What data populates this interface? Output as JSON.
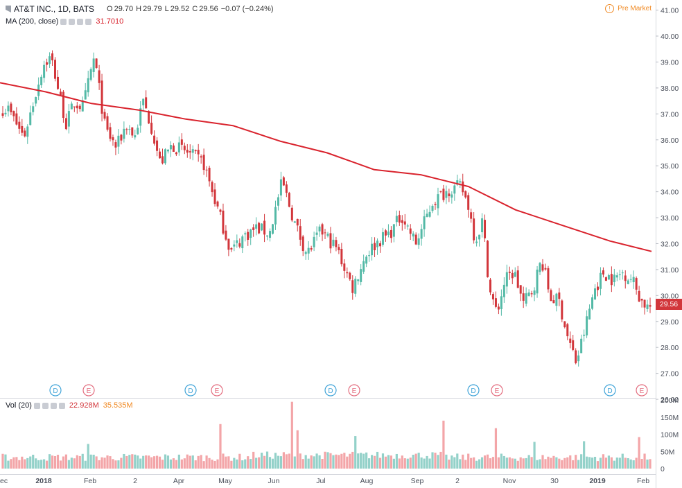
{
  "header": {
    "symbol_text": "AT&T INC., 1D, BATS",
    "open_label": "O",
    "open": "29.70",
    "high_label": "H",
    "high": "29.79",
    "low_label": "L",
    "low": "29.52",
    "close_label": "C",
    "close": "29.56",
    "change": "−0.07 (−0.24%)",
    "pre_market": "Pre Market",
    "pre_market_icon": "clock-icon"
  },
  "ma_legend": {
    "label": "MA (200, close)",
    "value": "31.7010"
  },
  "vol_legend": {
    "label": "Vol (20)",
    "value1": "22.928M",
    "value2": "35.535M"
  },
  "last_price_label": "29.56",
  "colors": {
    "up": "#53b9a6",
    "down": "#d2363b",
    "ma": "#d9232d",
    "vol_up": "#93d1c9",
    "vol_down": "#f3a5a8",
    "dividend": "#3ea3d8",
    "earnings": "#e36c7e"
  },
  "chart_data": {
    "type": "candlestick",
    "price_axis": {
      "ticks": [
        "41.00",
        "40.00",
        "39.00",
        "38.00",
        "37.00",
        "36.00",
        "35.00",
        "34.00",
        "33.00",
        "32.00",
        "31.00",
        "30.00",
        "29.00",
        "28.00",
        "27.00",
        "26.00"
      ],
      "range": [
        26,
        41
      ]
    },
    "volume_axis": {
      "ticks": [
        "200M",
        "150M",
        "100M",
        "50M",
        "0"
      ],
      "range": [
        0,
        200
      ]
    },
    "x_labels": [
      "ec",
      "2018",
      "Feb",
      "2",
      "Apr",
      "May",
      "Jun",
      "Jul",
      "Aug",
      "Sep",
      "2",
      "Nov",
      "30",
      "2019",
      "Feb"
    ],
    "price_path": [
      [
        "Dec 2017",
        37.2
      ],
      [
        "Dec 2017",
        36.1
      ],
      [
        "Jan 2018",
        37.8
      ],
      [
        "Jan 2018",
        38.9
      ],
      [
        "Jan 2018",
        39.2
      ],
      [
        "Jan 2018",
        37.9
      ],
      [
        "Jan 2018",
        36.6
      ],
      [
        "Jan 2018",
        37.4
      ],
      [
        "Feb 2018",
        37.3
      ],
      [
        "Feb 2018",
        39.2
      ],
      [
        "Feb 2018",
        36.4
      ],
      [
        "Feb 2018",
        35.7
      ],
      [
        "Mar 2018",
        36.6
      ],
      [
        "Mar 2018",
        36.1
      ],
      [
        "Mar 2018",
        37.5
      ],
      [
        "Mar 2018",
        36.5
      ],
      [
        "Mar 2018",
        35.1
      ],
      [
        "Apr 2018",
        35.8
      ],
      [
        "Apr 2018",
        35.5
      ],
      [
        "Apr 2018",
        35.1
      ],
      [
        "May 2018",
        33.3
      ],
      [
        "May 2018",
        31.7
      ],
      [
        "May 2018",
        32.3
      ],
      [
        "May 2018",
        32.6
      ],
      [
        "Jun 2018",
        32.4
      ],
      [
        "Jun 2018",
        34.4
      ],
      [
        "Jun 2018",
        32.8
      ],
      [
        "Jun 2018",
        31.6
      ],
      [
        "Jul 2018",
        32.5
      ],
      [
        "Jul 2018",
        31.8
      ],
      [
        "Jul 2018",
        30.3
      ],
      [
        "Aug 2018",
        31.6
      ],
      [
        "Aug 2018",
        32.1
      ],
      [
        "Aug 2018",
        32.4
      ],
      [
        "Aug 2018",
        33.1
      ],
      [
        "Sep 2018",
        32.0
      ],
      [
        "Sep 2018",
        33.6
      ],
      [
        "Sep 2018",
        34.1
      ],
      [
        "Oct 2018",
        34.2
      ],
      [
        "Oct 2018",
        33.5
      ],
      [
        "Oct 2018",
        32.1
      ],
      [
        "Oct 2018",
        32.9
      ],
      [
        "Oct 2018",
        30.2
      ],
      [
        "Oct 2018",
        29.3
      ],
      [
        "Nov 2018",
        30.6
      ],
      [
        "Nov 2018",
        30.9
      ],
      [
        "Nov 2018",
        29.7
      ],
      [
        "Nov 2018",
        30.2
      ],
      [
        "Nov 2018",
        31.4
      ],
      [
        "Dec 2018",
        29.9
      ],
      [
        "Dec 2018",
        29.8
      ],
      [
        "Dec 2018",
        28.4
      ],
      [
        "Dec 2018",
        27.4
      ],
      [
        "Dec 2018",
        28.7
      ],
      [
        "Jan 2019",
        30.2
      ],
      [
        "Jan 2019",
        30.9
      ],
      [
        "Jan 2019",
        30.6
      ],
      [
        "Jan 2019",
        30.9
      ],
      [
        "Jan 2019",
        30.6
      ],
      [
        "Feb 2019",
        29.8
      ],
      [
        "Feb 2019",
        29.56
      ]
    ],
    "ma_path": [
      [
        "Dec 2017",
        38.2
      ],
      [
        "Jan 2018",
        37.85
      ],
      [
        "Feb 2018",
        37.4
      ],
      [
        "Mar 2018",
        37.15
      ],
      [
        "Apr 2018",
        36.8
      ],
      [
        "May 2018",
        36.55
      ],
      [
        "Jun 2018",
        35.95
      ],
      [
        "Jul 2018",
        35.5
      ],
      [
        "Aug 2018",
        34.85
      ],
      [
        "Sep 2018",
        34.65
      ],
      [
        "Oct 2018",
        34.2
      ],
      [
        "Nov 2018",
        33.3
      ],
      [
        "Dec 2018",
        32.7
      ],
      [
        "Jan 2019",
        32.1
      ],
      [
        "Feb 2019",
        31.701
      ]
    ],
    "volume_spikes_M": [
      [
        "Feb 2018",
        72
      ],
      [
        "May 2018",
        130
      ],
      [
        "Jun 2018",
        195
      ],
      [
        "Jun 2018",
        112
      ],
      [
        "Jul 2018",
        95
      ],
      [
        "Sep 2018",
        140
      ],
      [
        "Oct 2018",
        118
      ],
      [
        "Nov 2018",
        78
      ],
      [
        "Dec 2018",
        80
      ],
      [
        "Jan 2019",
        92
      ]
    ],
    "events": [
      {
        "type": "dividend",
        "label": "D",
        "date": "Jan 2018"
      },
      {
        "type": "earnings",
        "label": "E",
        "date": "Jan 2018"
      },
      {
        "type": "dividend",
        "label": "D",
        "date": "Apr 2018"
      },
      {
        "type": "earnings",
        "label": "E",
        "date": "Apr 2018"
      },
      {
        "type": "dividend",
        "label": "D",
        "date": "Jul 2018"
      },
      {
        "type": "earnings",
        "label": "E",
        "date": "Jul 2018"
      },
      {
        "type": "dividend",
        "label": "D",
        "date": "Oct 2018"
      },
      {
        "type": "earnings",
        "label": "E",
        "date": "Oct 2018"
      },
      {
        "type": "dividend",
        "label": "D",
        "date": "Jan 2019"
      },
      {
        "type": "earnings",
        "label": "E",
        "date": "Jan 2019"
      }
    ]
  }
}
